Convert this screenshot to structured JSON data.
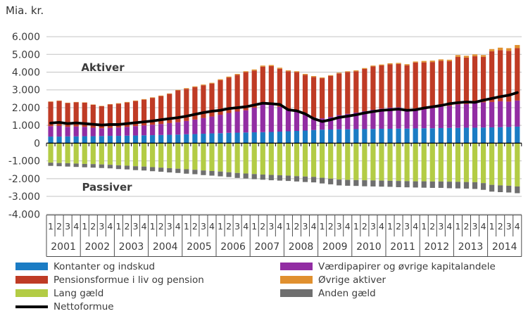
{
  "unit_label": "Mia. kr.",
  "chart_data": {
    "type": "bar",
    "stacked": true,
    "title": "",
    "ylabel": "Mia. kr.",
    "ylim": [
      -4000,
      6000
    ],
    "ytick_step": 1000,
    "ytick_labels": [
      "6.000",
      "5.000",
      "4.000",
      "3.000",
      "2.000",
      "1.000",
      "0",
      "-1.000",
      "-2.000",
      "-3.000",
      "-4.000"
    ],
    "annotations": [
      {
        "text": "Aktiver"
      },
      {
        "text": "Passiver"
      }
    ],
    "years": [
      "2001",
      "2002",
      "2003",
      "2004",
      "2005",
      "2006",
      "2007",
      "2008",
      "2009",
      "2010",
      "2011",
      "2012",
      "2013",
      "2014"
    ],
    "quarter_labels": [
      "1",
      "2",
      "3",
      "4"
    ],
    "grid_color": "#c3c3c3",
    "axis_color": "#4d4d4d",
    "text_color": "#3c3c3c",
    "series": [
      {
        "name": "Kontanter og indskud",
        "color": "#1b7cc4",
        "role": "positive-stack",
        "values": [
          370,
          370,
          380,
          380,
          390,
          390,
          400,
          410,
          410,
          420,
          430,
          440,
          450,
          460,
          470,
          480,
          500,
          510,
          530,
          550,
          560,
          580,
          590,
          600,
          610,
          620,
          630,
          650,
          670,
          690,
          710,
          740,
          760,
          770,
          780,
          780,
          790,
          790,
          800,
          810,
          810,
          820,
          820,
          830,
          840,
          840,
          850,
          860,
          860,
          870,
          870,
          880,
          890,
          900,
          910,
          930
        ]
      },
      {
        "name": "Værdipapirer og øvrige kapitalandele",
        "color": "#922da3",
        "role": "positive-stack",
        "values": [
          590,
          600,
          540,
          560,
          530,
          480,
          440,
          450,
          470,
          500,
          530,
          560,
          590,
          620,
          660,
          700,
          750,
          820,
          890,
          950,
          1040,
          1120,
          1190,
          1250,
          1390,
          1570,
          1520,
          1400,
          1230,
          1110,
          890,
          710,
          640,
          710,
          800,
          870,
          930,
          1010,
          1080,
          1140,
          1190,
          1200,
          1080,
          1120,
          1160,
          1180,
          1210,
          1240,
          1320,
          1330,
          1390,
          1420,
          1430,
          1460,
          1430,
          1470
        ]
      },
      {
        "name": "Pensionsformue i liv og pension",
        "color": "#bf3b25",
        "role": "positive-stack",
        "values": [
          1370,
          1410,
          1340,
          1360,
          1360,
          1290,
          1240,
          1320,
          1340,
          1370,
          1410,
          1450,
          1510,
          1570,
          1640,
          1790,
          1810,
          1830,
          1840,
          1860,
          1950,
          2000,
          2070,
          2150,
          2090,
          2120,
          2190,
          2140,
          2150,
          2200,
          2250,
          2280,
          2260,
          2310,
          2350,
          2360,
          2330,
          2380,
          2440,
          2430,
          2440,
          2440,
          2490,
          2590,
          2550,
          2550,
          2580,
          2520,
          2680,
          2620,
          2640,
          2560,
          2860,
          2880,
          2860,
          2950
        ]
      },
      {
        "name": "Øvrige aktiver",
        "color": "#e0902f",
        "role": "positive-stack",
        "values": [
          20,
          20,
          20,
          20,
          20,
          20,
          20,
          20,
          30,
          30,
          30,
          30,
          30,
          30,
          30,
          30,
          40,
          40,
          40,
          40,
          50,
          50,
          50,
          50,
          60,
          60,
          60,
          60,
          50,
          50,
          50,
          50,
          40,
          40,
          40,
          40,
          50,
          50,
          50,
          50,
          60,
          60,
          60,
          60,
          80,
          80,
          80,
          80,
          100,
          100,
          100,
          100,
          120,
          140,
          150,
          180
        ]
      },
      {
        "name": "Lang gæld",
        "color": "#b3cc45",
        "role": "negative-stack",
        "values": [
          -1100,
          -1120,
          -1130,
          -1150,
          -1170,
          -1180,
          -1200,
          -1220,
          -1250,
          -1270,
          -1300,
          -1320,
          -1350,
          -1380,
          -1410,
          -1440,
          -1470,
          -1500,
          -1540,
          -1570,
          -1600,
          -1640,
          -1680,
          -1710,
          -1740,
          -1770,
          -1790,
          -1810,
          -1830,
          -1860,
          -1880,
          -1900,
          -1950,
          -2000,
          -2050,
          -2070,
          -2080,
          -2090,
          -2100,
          -2110,
          -2120,
          -2130,
          -2140,
          -2150,
          -2150,
          -2160,
          -2160,
          -2170,
          -2180,
          -2190,
          -2200,
          -2250,
          -2350,
          -2380,
          -2400,
          -2440
        ]
      },
      {
        "name": "Anden gæld",
        "color": "#6f6f6f",
        "role": "negative-stack",
        "values": [
          -180,
          -180,
          -190,
          -190,
          -190,
          -200,
          -200,
          -200,
          -210,
          -210,
          -220,
          -220,
          -230,
          -230,
          -240,
          -240,
          -250,
          -250,
          -260,
          -260,
          -270,
          -270,
          -280,
          -280,
          -290,
          -290,
          -300,
          -300,
          -300,
          -300,
          -310,
          -310,
          -320,
          -320,
          -330,
          -330,
          -330,
          -340,
          -340,
          -340,
          -340,
          -350,
          -350,
          -350,
          -360,
          -360,
          -360,
          -370,
          -370,
          -370,
          -380,
          -380,
          -380,
          -380,
          -380,
          -380
        ]
      },
      {
        "name": "Nettoformue",
        "color": "#000000",
        "role": "line",
        "values": [
          1130,
          1170,
          1100,
          1140,
          1100,
          1060,
          1020,
          1050,
          1050,
          1100,
          1150,
          1200,
          1250,
          1320,
          1380,
          1440,
          1520,
          1620,
          1720,
          1800,
          1850,
          1950,
          2000,
          2050,
          2150,
          2250,
          2220,
          2180,
          1880,
          1820,
          1650,
          1380,
          1220,
          1320,
          1450,
          1520,
          1600,
          1700,
          1780,
          1850,
          1880,
          1920,
          1850,
          1880,
          1980,
          2050,
          2120,
          2220,
          2280,
          2320,
          2300,
          2420,
          2520,
          2620,
          2700,
          2850
        ]
      }
    ]
  },
  "legend": {
    "columns": [
      {
        "items": [
          {
            "label": "Kontanter og indskud",
            "color": "#1b7cc4",
            "shape": "rect"
          },
          {
            "label": "Pensionsformue i liv og pension",
            "color": "#bf3b25",
            "shape": "rect"
          },
          {
            "label": "Lang gæld",
            "color": "#b3cc45",
            "shape": "rect"
          },
          {
            "label": "Nettoformue",
            "color": "#000000",
            "shape": "line"
          }
        ]
      },
      {
        "items": [
          {
            "label": "Værdipapirer og øvrige kapitalandele",
            "color": "#922da3",
            "shape": "rect"
          },
          {
            "label": "Øvrige aktiver",
            "color": "#e0902f",
            "shape": "rect"
          },
          {
            "label": "Anden gæld",
            "color": "#6f6f6f",
            "shape": "rect"
          }
        ]
      }
    ]
  }
}
